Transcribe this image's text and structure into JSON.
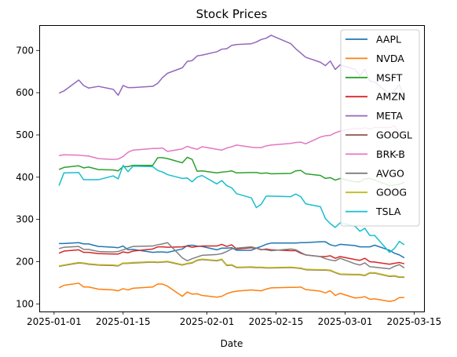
{
  "chart_data": {
    "type": "line",
    "title": "Stock Prices",
    "xlabel": "Date",
    "ylabel": "",
    "x_ticks": [
      "2025-01-01",
      "2025-01-15",
      "2025-02-01",
      "2025-02-15",
      "2025-03-01",
      "2025-03-15"
    ],
    "y_ticks": [
      100,
      200,
      300,
      400,
      500,
      600,
      700
    ],
    "xlim": [
      "2024-12-29",
      "2025-03-17"
    ],
    "ylim": [
      82,
      760
    ],
    "grid": false,
    "legend_position": "top-right",
    "dates": [
      "2025-01-02",
      "2025-01-03",
      "2025-01-06",
      "2025-01-07",
      "2025-01-08",
      "2025-01-10",
      "2025-01-13",
      "2025-01-14",
      "2025-01-15",
      "2025-01-16",
      "2025-01-17",
      "2025-01-21",
      "2025-01-22",
      "2025-01-23",
      "2025-01-24",
      "2025-01-27",
      "2025-01-28",
      "2025-01-29",
      "2025-01-30",
      "2025-01-31",
      "2025-02-03",
      "2025-02-04",
      "2025-02-05",
      "2025-02-06",
      "2025-02-07",
      "2025-02-10",
      "2025-02-11",
      "2025-02-12",
      "2025-02-13",
      "2025-02-14",
      "2025-02-18",
      "2025-02-19",
      "2025-02-20",
      "2025-02-21",
      "2025-02-24",
      "2025-02-25",
      "2025-02-26",
      "2025-02-27",
      "2025-02-28",
      "2025-03-03",
      "2025-03-04",
      "2025-03-05",
      "2025-03-06",
      "2025-03-07",
      "2025-03-10",
      "2025-03-11",
      "2025-03-12",
      "2025-03-13"
    ],
    "series": [
      {
        "name": "AAPL",
        "color": "#1f77b4",
        "values": [
          243,
          243,
          245,
          242,
          242,
          236,
          234,
          233,
          237,
          228,
          229,
          222,
          223,
          223,
          222,
          230,
          238,
          239,
          237,
          236,
          228,
          232,
          232,
          233,
          227,
          227,
          232,
          236,
          241,
          244,
          244,
          244,
          245,
          245,
          247,
          247,
          240,
          237,
          241,
          238,
          235,
          235,
          235,
          239,
          227,
          220,
          216,
          209
        ]
      },
      {
        "name": "NVDA",
        "color": "#ff7f0e",
        "values": [
          138,
          144,
          149,
          140,
          140,
          135,
          133,
          131,
          136,
          133,
          137,
          140,
          147,
          147,
          142,
          118,
          128,
          123,
          124,
          120,
          116,
          118,
          124,
          128,
          130,
          133,
          132,
          131,
          135,
          138,
          139,
          139,
          140,
          134,
          130,
          126,
          131,
          120,
          125,
          114,
          115,
          117,
          111,
          112,
          106,
          108,
          115,
          115
        ]
      },
      {
        "name": "MSFT",
        "color": "#2ca02c",
        "values": [
          418,
          423,
          427,
          422,
          424,
          418,
          417,
          415,
          425,
          425,
          428,
          428,
          446,
          446,
          444,
          434,
          447,
          442,
          414,
          415,
          410,
          412,
          413,
          415,
          410,
          411,
          411,
          409,
          410,
          408,
          409,
          415,
          416,
          408,
          404,
          397,
          399,
          393,
          397,
          389,
          389,
          396,
          397,
          393,
          380,
          381,
          383,
          388
        ]
      },
      {
        "name": "AMZN",
        "color": "#d62728",
        "values": [
          220,
          225,
          228,
          222,
          222,
          219,
          218,
          218,
          223,
          221,
          225,
          230,
          235,
          235,
          234,
          235,
          237,
          234,
          236,
          237,
          237,
          241,
          236,
          240,
          230,
          233,
          232,
          228,
          230,
          228,
          226,
          226,
          220,
          216,
          212,
          212,
          214,
          208,
          212,
          205,
          203,
          208,
          200,
          199,
          194,
          196,
          198,
          195
        ]
      },
      {
        "name": "META",
        "color": "#9467bd",
        "values": [
          599,
          604,
          630,
          617,
          611,
          615,
          608,
          594,
          617,
          612,
          612,
          615,
          622,
          636,
          646,
          659,
          674,
          676,
          687,
          689,
          697,
          703,
          704,
          712,
          714,
          716,
          720,
          726,
          729,
          736,
          716,
          704,
          694,
          684,
          672,
          664,
          675,
          655,
          666,
          655,
          640,
          656,
          628,
          625,
          597,
          605,
          619,
          590
        ]
      },
      {
        "name": "GOOGL",
        "color": "#8c564b",
        "values": [
          189,
          191,
          197,
          196,
          194,
          192,
          191,
          190,
          196,
          196,
          197,
          199,
          198,
          199,
          200,
          192,
          195,
          197,
          203,
          205,
          202,
          205,
          191,
          192,
          186,
          187,
          186,
          186,
          185,
          185,
          186,
          185,
          184,
          181,
          180,
          180,
          179,
          174,
          170,
          169,
          169,
          167,
          173,
          173,
          165,
          166,
          163,
          163
        ]
      },
      {
        "name": "BRK-B",
        "color": "#e377c2",
        "values": [
          451,
          453,
          452,
          451,
          450,
          444,
          442,
          443,
          449,
          459,
          464,
          468,
          468,
          469,
          461,
          467,
          473,
          469,
          466,
          472,
          466,
          464,
          469,
          472,
          476,
          471,
          470,
          470,
          474,
          476,
          480,
          482,
          483,
          479,
          495,
          498,
          499,
          505,
          509,
          516,
          514,
          517,
          514,
          518,
          517,
          522,
          506,
          503
        ]
      },
      {
        "name": "AVGO",
        "color": "#7f7f7f",
        "values": [
          231,
          234,
          236,
          229,
          229,
          224,
          223,
          224,
          228,
          232,
          236,
          237,
          240,
          242,
          245,
          209,
          202,
          207,
          211,
          215,
          217,
          219,
          224,
          230,
          232,
          235,
          232,
          229,
          228,
          226,
          230,
          228,
          222,
          216,
          212,
          207,
          204,
          202,
          208,
          195,
          192,
          197,
          188,
          187,
          183,
          189,
          193,
          185
        ]
      },
      {
        "name": "GOOG",
        "color": "#bcbd22",
        "values": [
          190,
          192,
          198,
          197,
          195,
          193,
          192,
          191,
          197,
          197,
          198,
          200,
          199,
          200,
          201,
          193,
          196,
          198,
          204,
          206,
          203,
          206,
          192,
          193,
          187,
          188,
          187,
          187,
          186,
          186,
          187,
          186,
          185,
          182,
          181,
          181,
          180,
          175,
          171,
          170,
          170,
          168,
          174,
          174,
          166,
          167,
          164,
          164
        ]
      },
      {
        "name": "TSLA",
        "color": "#17becf",
        "values": [
          380,
          410,
          411,
          394,
          394,
          394,
          403,
          396,
          428,
          413,
          426,
          425,
          416,
          412,
          406,
          397,
          398,
          389,
          400,
          404,
          384,
          392,
          380,
          375,
          361,
          351,
          328,
          336,
          355,
          355,
          354,
          360,
          354,
          337,
          330,
          302,
          290,
          281,
          292,
          284,
          272,
          279,
          262,
          262,
          222,
          231,
          248,
          240
        ]
      }
    ]
  }
}
